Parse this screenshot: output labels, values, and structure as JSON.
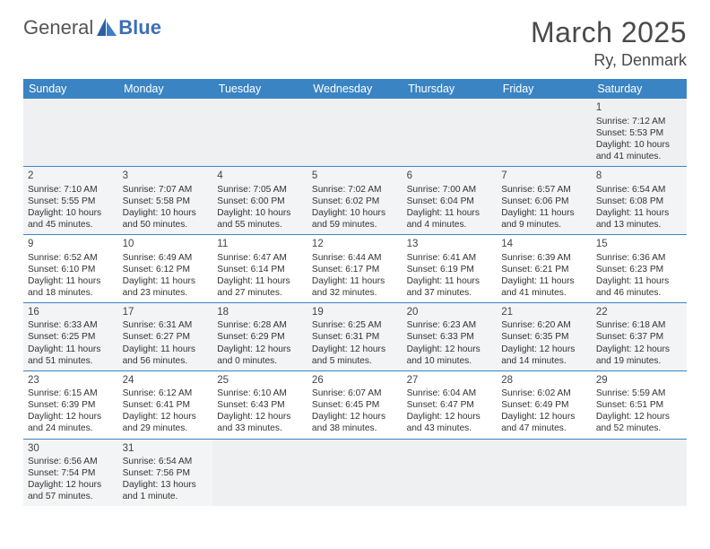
{
  "brand": {
    "general": "General",
    "blue": "Blue"
  },
  "header": {
    "month": "March 2025",
    "location": "Ry, Denmark"
  },
  "colors": {
    "header_bg": "#3b84c4",
    "header_text": "#ffffff",
    "row_alt": "#f3f4f6",
    "row_base": "#ffffff",
    "week1_bg": "#eef0f2",
    "rule": "#3b84c4"
  },
  "days": [
    "Sunday",
    "Monday",
    "Tuesday",
    "Wednesday",
    "Thursday",
    "Friday",
    "Saturday"
  ],
  "weeks": [
    [
      null,
      null,
      null,
      null,
      null,
      null,
      {
        "n": "1",
        "sr": "Sunrise: 7:12 AM",
        "ss": "Sunset: 5:53 PM",
        "dl": "Daylight: 10 hours and 41 minutes."
      }
    ],
    [
      {
        "n": "2",
        "sr": "Sunrise: 7:10 AM",
        "ss": "Sunset: 5:55 PM",
        "dl": "Daylight: 10 hours and 45 minutes."
      },
      {
        "n": "3",
        "sr": "Sunrise: 7:07 AM",
        "ss": "Sunset: 5:58 PM",
        "dl": "Daylight: 10 hours and 50 minutes."
      },
      {
        "n": "4",
        "sr": "Sunrise: 7:05 AM",
        "ss": "Sunset: 6:00 PM",
        "dl": "Daylight: 10 hours and 55 minutes."
      },
      {
        "n": "5",
        "sr": "Sunrise: 7:02 AM",
        "ss": "Sunset: 6:02 PM",
        "dl": "Daylight: 10 hours and 59 minutes."
      },
      {
        "n": "6",
        "sr": "Sunrise: 7:00 AM",
        "ss": "Sunset: 6:04 PM",
        "dl": "Daylight: 11 hours and 4 minutes."
      },
      {
        "n": "7",
        "sr": "Sunrise: 6:57 AM",
        "ss": "Sunset: 6:06 PM",
        "dl": "Daylight: 11 hours and 9 minutes."
      },
      {
        "n": "8",
        "sr": "Sunrise: 6:54 AM",
        "ss": "Sunset: 6:08 PM",
        "dl": "Daylight: 11 hours and 13 minutes."
      }
    ],
    [
      {
        "n": "9",
        "sr": "Sunrise: 6:52 AM",
        "ss": "Sunset: 6:10 PM",
        "dl": "Daylight: 11 hours and 18 minutes."
      },
      {
        "n": "10",
        "sr": "Sunrise: 6:49 AM",
        "ss": "Sunset: 6:12 PM",
        "dl": "Daylight: 11 hours and 23 minutes."
      },
      {
        "n": "11",
        "sr": "Sunrise: 6:47 AM",
        "ss": "Sunset: 6:14 PM",
        "dl": "Daylight: 11 hours and 27 minutes."
      },
      {
        "n": "12",
        "sr": "Sunrise: 6:44 AM",
        "ss": "Sunset: 6:17 PM",
        "dl": "Daylight: 11 hours and 32 minutes."
      },
      {
        "n": "13",
        "sr": "Sunrise: 6:41 AM",
        "ss": "Sunset: 6:19 PM",
        "dl": "Daylight: 11 hours and 37 minutes."
      },
      {
        "n": "14",
        "sr": "Sunrise: 6:39 AM",
        "ss": "Sunset: 6:21 PM",
        "dl": "Daylight: 11 hours and 41 minutes."
      },
      {
        "n": "15",
        "sr": "Sunrise: 6:36 AM",
        "ss": "Sunset: 6:23 PM",
        "dl": "Daylight: 11 hours and 46 minutes."
      }
    ],
    [
      {
        "n": "16",
        "sr": "Sunrise: 6:33 AM",
        "ss": "Sunset: 6:25 PM",
        "dl": "Daylight: 11 hours and 51 minutes."
      },
      {
        "n": "17",
        "sr": "Sunrise: 6:31 AM",
        "ss": "Sunset: 6:27 PM",
        "dl": "Daylight: 11 hours and 56 minutes."
      },
      {
        "n": "18",
        "sr": "Sunrise: 6:28 AM",
        "ss": "Sunset: 6:29 PM",
        "dl": "Daylight: 12 hours and 0 minutes."
      },
      {
        "n": "19",
        "sr": "Sunrise: 6:25 AM",
        "ss": "Sunset: 6:31 PM",
        "dl": "Daylight: 12 hours and 5 minutes."
      },
      {
        "n": "20",
        "sr": "Sunrise: 6:23 AM",
        "ss": "Sunset: 6:33 PM",
        "dl": "Daylight: 12 hours and 10 minutes."
      },
      {
        "n": "21",
        "sr": "Sunrise: 6:20 AM",
        "ss": "Sunset: 6:35 PM",
        "dl": "Daylight: 12 hours and 14 minutes."
      },
      {
        "n": "22",
        "sr": "Sunrise: 6:18 AM",
        "ss": "Sunset: 6:37 PM",
        "dl": "Daylight: 12 hours and 19 minutes."
      }
    ],
    [
      {
        "n": "23",
        "sr": "Sunrise: 6:15 AM",
        "ss": "Sunset: 6:39 PM",
        "dl": "Daylight: 12 hours and 24 minutes."
      },
      {
        "n": "24",
        "sr": "Sunrise: 6:12 AM",
        "ss": "Sunset: 6:41 PM",
        "dl": "Daylight: 12 hours and 29 minutes."
      },
      {
        "n": "25",
        "sr": "Sunrise: 6:10 AM",
        "ss": "Sunset: 6:43 PM",
        "dl": "Daylight: 12 hours and 33 minutes."
      },
      {
        "n": "26",
        "sr": "Sunrise: 6:07 AM",
        "ss": "Sunset: 6:45 PM",
        "dl": "Daylight: 12 hours and 38 minutes."
      },
      {
        "n": "27",
        "sr": "Sunrise: 6:04 AM",
        "ss": "Sunset: 6:47 PM",
        "dl": "Daylight: 12 hours and 43 minutes."
      },
      {
        "n": "28",
        "sr": "Sunrise: 6:02 AM",
        "ss": "Sunset: 6:49 PM",
        "dl": "Daylight: 12 hours and 47 minutes."
      },
      {
        "n": "29",
        "sr": "Sunrise: 5:59 AM",
        "ss": "Sunset: 6:51 PM",
        "dl": "Daylight: 12 hours and 52 minutes."
      }
    ],
    [
      {
        "n": "30",
        "sr": "Sunrise: 6:56 AM",
        "ss": "Sunset: 7:54 PM",
        "dl": "Daylight: 12 hours and 57 minutes."
      },
      {
        "n": "31",
        "sr": "Sunrise: 6:54 AM",
        "ss": "Sunset: 7:56 PM",
        "dl": "Daylight: 13 hours and 1 minute."
      },
      null,
      null,
      null,
      null,
      null
    ]
  ]
}
